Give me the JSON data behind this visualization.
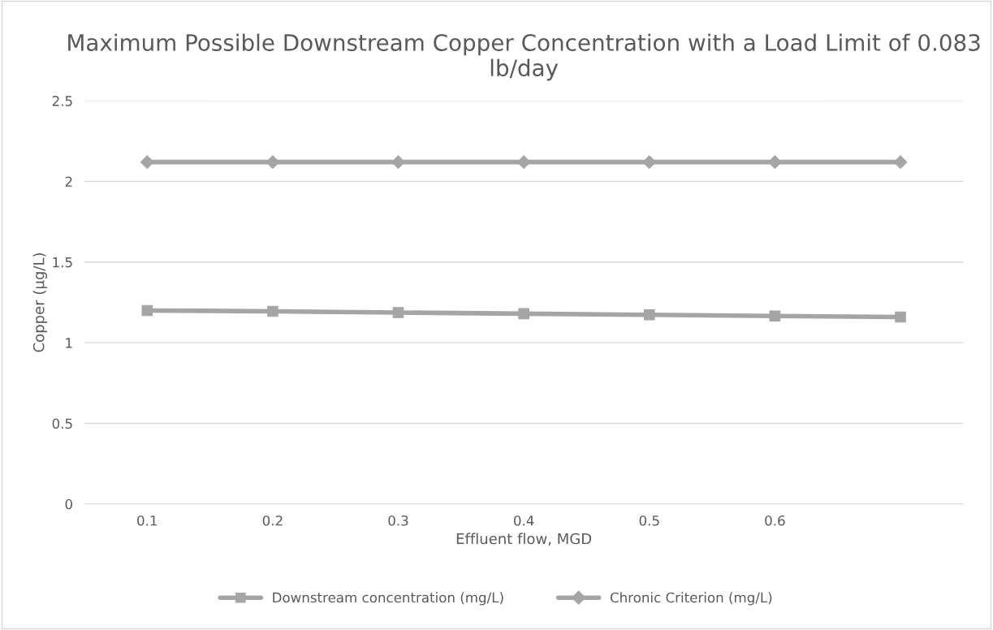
{
  "chart_data": {
    "type": "line",
    "title": "Maximum Possible Downstream Copper Concentration with a Load Limit of 0.083 lb/day",
    "xlabel": "Effluent flow, MGD",
    "ylabel": "Copper (µg/L)",
    "categories": [
      "0.1",
      "0.2",
      "0.3",
      "0.4",
      "0.5",
      "0.6",
      null
    ],
    "series": [
      {
        "name": "Downstream concentration (mg/L)",
        "color": "#a5a5a5",
        "marker": "square",
        "values": [
          1.2,
          1.195,
          1.187,
          1.18,
          1.173,
          1.166,
          1.159
        ]
      },
      {
        "name": "Chronic Criterion (mg/L)",
        "color": "#a5a5a5",
        "marker": "diamond",
        "values": [
          2.12,
          2.12,
          2.12,
          2.12,
          2.12,
          2.12,
          2.12
        ]
      }
    ],
    "ylim": [
      0,
      2.5
    ],
    "yticks": [
      0,
      0.5,
      1,
      1.5,
      2,
      2.5
    ],
    "grid": "y",
    "legend": "bottom",
    "line_style": "solid"
  }
}
